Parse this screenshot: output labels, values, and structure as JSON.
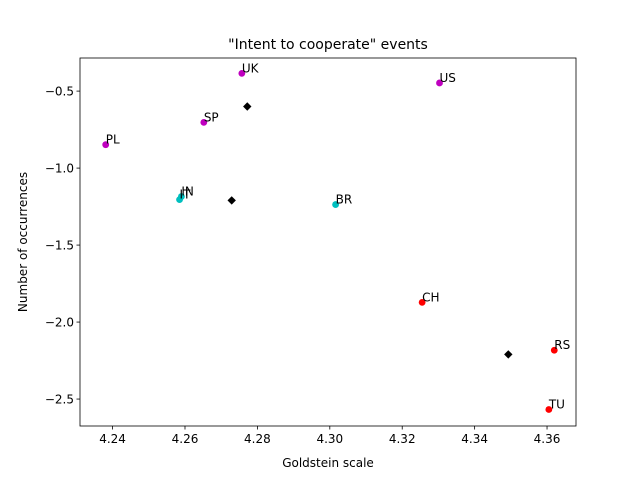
{
  "chart_data": {
    "type": "scatter",
    "title": "\"Intent to cooperate\" events",
    "xlabel": "Goldstein scale",
    "ylabel": "Number of occurrences",
    "xlim": [
      4.231,
      4.368
    ],
    "ylim": [
      -2.675,
      -0.285
    ],
    "x_ticks": [
      4.24,
      4.26,
      4.28,
      4.3,
      4.32,
      4.34,
      4.36
    ],
    "x_tick_labels": [
      "4.24",
      "4.26",
      "4.28",
      "4.30",
      "4.32",
      "4.34",
      "4.36"
    ],
    "y_ticks": [
      -2.5,
      -2.0,
      -1.5,
      -1.0,
      -0.5
    ],
    "y_tick_labels": [
      "−2.5",
      "−2.0",
      "−1.5",
      "−1.0",
      "−0.5"
    ],
    "grid": false,
    "legend": "none",
    "colors": {
      "magenta": "#bf00bf",
      "cyan": "#00bfbf",
      "red": "#ff0000",
      "black": "#000000"
    },
    "points": [
      {
        "label": "UK",
        "x": 4.2757,
        "y": -0.385,
        "color": "#bf00bf"
      },
      {
        "label": "US",
        "x": 4.3303,
        "y": -0.447,
        "color": "#bf00bf"
      },
      {
        "label": "SP",
        "x": 4.2652,
        "y": -0.703,
        "color": "#bf00bf"
      },
      {
        "label": "PL",
        "x": 4.2381,
        "y": -0.848,
        "color": "#bf00bf"
      },
      {
        "label": "IN",
        "x": 4.259,
        "y": -1.185,
        "color": "#00bfbf"
      },
      {
        "label": "IT",
        "x": 4.2585,
        "y": -1.205,
        "color": "#00bfbf"
      },
      {
        "label": "BR",
        "x": 4.3016,
        "y": -1.237,
        "color": "#00bfbf"
      },
      {
        "label": "CH",
        "x": 4.3255,
        "y": -1.872,
        "color": "#ff0000"
      },
      {
        "label": "RS",
        "x": 4.362,
        "y": -2.183,
        "color": "#ff0000"
      },
      {
        "label": "TU",
        "x": 4.3605,
        "y": -2.568,
        "color": "#ff0000"
      }
    ],
    "centroids": [
      {
        "x": 4.2772,
        "y": -0.6,
        "color": "#000000"
      },
      {
        "x": 4.2729,
        "y": -1.21,
        "color": "#000000"
      },
      {
        "x": 4.3493,
        "y": -2.21,
        "color": "#000000"
      }
    ]
  }
}
